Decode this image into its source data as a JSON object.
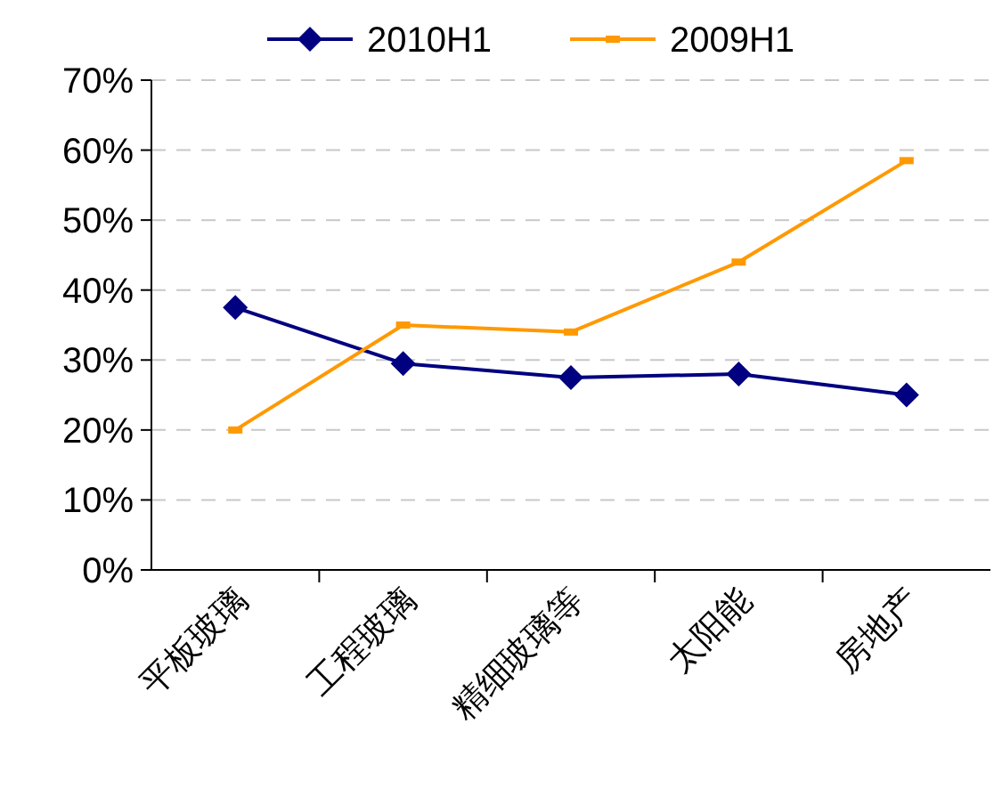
{
  "chart_data": {
    "type": "line",
    "categories": [
      "平板玻璃",
      "工程玻璃",
      "精细玻璃等",
      "太阳能",
      "房地产"
    ],
    "series": [
      {
        "name": "2010H1",
        "color": "#000080",
        "marker": "diamond",
        "values": [
          37.5,
          29.5,
          27.5,
          28,
          25
        ]
      },
      {
        "name": "2009H1",
        "color": "#ff9900",
        "marker": "square",
        "values": [
          20,
          35,
          34,
          44,
          58.5
        ]
      }
    ],
    "ylim": [
      0,
      70
    ],
    "yticks": [
      {
        "value": 0,
        "label": "0%"
      },
      {
        "value": 10,
        "label": "10%"
      },
      {
        "value": 20,
        "label": "20%"
      },
      {
        "value": 30,
        "label": "30%"
      },
      {
        "value": 40,
        "label": "40%"
      },
      {
        "value": 50,
        "label": "50%"
      },
      {
        "value": 60,
        "label": "60%"
      },
      {
        "value": 70,
        "label": "70%"
      }
    ],
    "grid": "y",
    "legend": "top",
    "line_style": "solid"
  }
}
